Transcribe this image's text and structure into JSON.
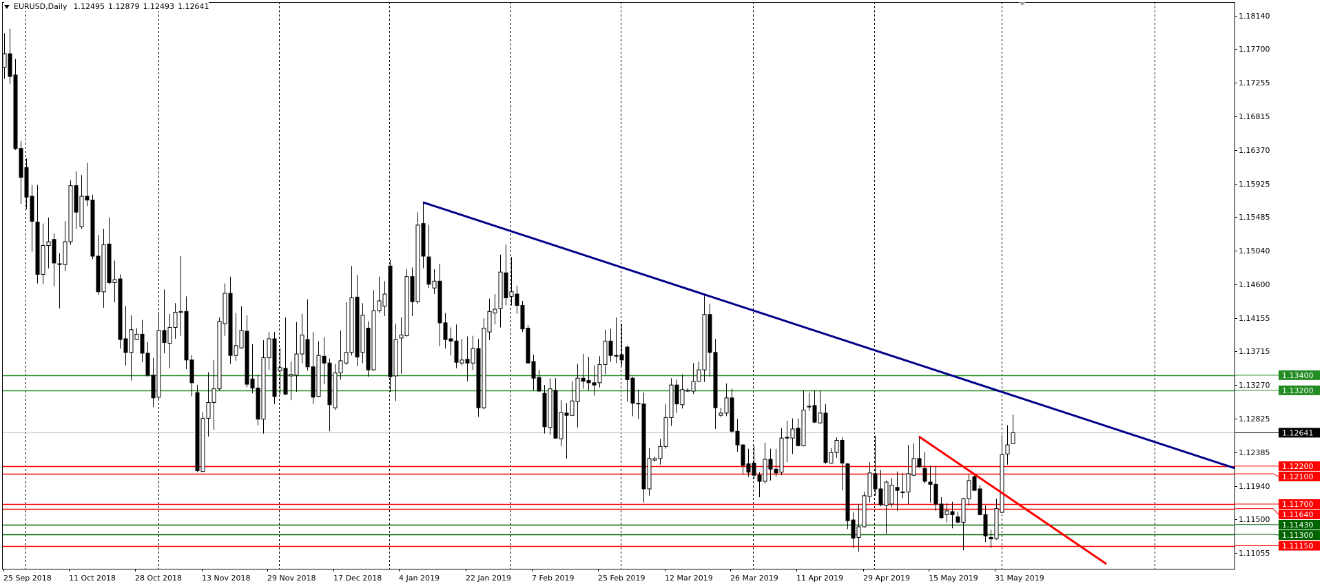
{
  "header": {
    "symbol": "EURUSD,Daily",
    "open": "1.12495",
    "high": "1.12879",
    "low": "1.12493",
    "close": "1.12641"
  },
  "colors": {
    "background": "#ffffff",
    "candle_bear": "#000000",
    "candle_bull_fill": "#ffffff",
    "grid": "#000000",
    "trendline_main": "#00008b",
    "trendline_short": "#ff0000",
    "support_green": "#228b22",
    "support_darkgreen": "#006400",
    "resistance_red": "#ff0000",
    "current_price_line": "#c0c0c0",
    "current_price_tag": "#000000"
  },
  "chart_data": {
    "type": "candlestick",
    "price_axis_labels": [
      "1.18140",
      "1.17700",
      "1.17255",
      "1.16815",
      "1.16370",
      "1.15925",
      "1.15485",
      "1.15040",
      "1.14600",
      "1.14155",
      "1.13715",
      "1.13270",
      "1.12825",
      "1.12385",
      "1.11940",
      "1.11500",
      "1.11055"
    ],
    "date_axis_labels": [
      "25 Sep 2018",
      "11 Oct 2018",
      "28 Oct 2018",
      "13 Nov 2018",
      "29 Nov 2018",
      "17 Dec 2018",
      "4 Jan 2019",
      "22 Jan 2019",
      "7 Feb 2019",
      "25 Feb 2019",
      "12 Mar 2019",
      "26 Mar 2019",
      "11 Apr 2019",
      "29 Apr 2019",
      "15 May 2019",
      "31 May 2019"
    ],
    "ylim": [
      1.1098,
      1.1817
    ],
    "grid": "vertical dashed",
    "candles_ohlc": [
      [
        1.1746,
        1.1791,
        1.1731,
        1.1764
      ],
      [
        1.1764,
        1.1797,
        1.1724,
        1.1734
      ],
      [
        1.1736,
        1.1757,
        1.1637,
        1.1639
      ],
      [
        1.1639,
        1.1649,
        1.1566,
        1.1601
      ],
      [
        1.1614,
        1.1626,
        1.1559,
        1.1575
      ],
      [
        1.1576,
        1.1591,
        1.1503,
        1.1543
      ],
      [
        1.1542,
        1.1591,
        1.1461,
        1.1473
      ],
      [
        1.1473,
        1.154,
        1.146,
        1.1511
      ],
      [
        1.1511,
        1.1548,
        1.1481,
        1.1516
      ],
      [
        1.1519,
        1.1527,
        1.1457,
        1.1488
      ],
      [
        1.1487,
        1.1501,
        1.1428,
        1.1486
      ],
      [
        1.1486,
        1.1543,
        1.1477,
        1.1516
      ],
      [
        1.1516,
        1.1597,
        1.1512,
        1.159
      ],
      [
        1.159,
        1.1609,
        1.1533,
        1.1555
      ],
      [
        1.1536,
        1.1604,
        1.1533,
        1.1576
      ],
      [
        1.1576,
        1.162,
        1.1563,
        1.1571
      ],
      [
        1.1571,
        1.1578,
        1.1493,
        1.1497
      ],
      [
        1.1497,
        1.1525,
        1.1446,
        1.145
      ],
      [
        1.145,
        1.1533,
        1.1429,
        1.1512
      ],
      [
        1.1513,
        1.1548,
        1.146,
        1.1462
      ],
      [
        1.1462,
        1.1491,
        1.1436,
        1.1466
      ],
      [
        1.1467,
        1.1473,
        1.1375,
        1.1387
      ],
      [
        1.1388,
        1.1431,
        1.1353,
        1.137
      ],
      [
        1.137,
        1.1419,
        1.1333,
        1.14
      ],
      [
        1.1387,
        1.1402,
        1.1386,
        1.1394
      ],
      [
        1.1394,
        1.1413,
        1.1357,
        1.1369
      ],
      [
        1.1369,
        1.1384,
        1.1338,
        1.134
      ],
      [
        1.134,
        1.1363,
        1.1298,
        1.131
      ],
      [
        1.1311,
        1.1421,
        1.1309,
        1.1399
      ],
      [
        1.1399,
        1.1453,
        1.1369,
        1.1383
      ],
      [
        1.1382,
        1.1421,
        1.1349,
        1.1403
      ],
      [
        1.1403,
        1.1435,
        1.1388,
        1.1423
      ],
      [
        1.1423,
        1.1497,
        1.1392,
        1.1424
      ],
      [
        1.1424,
        1.1444,
        1.1348,
        1.136
      ],
      [
        1.136,
        1.1366,
        1.1312,
        1.133
      ],
      [
        1.1317,
        1.1327,
        1.1212,
        1.1214
      ],
      [
        1.1213,
        1.1291,
        1.1212,
        1.1283
      ],
      [
        1.1283,
        1.1344,
        1.1259,
        1.1304
      ],
      [
        1.1304,
        1.136,
        1.1268,
        1.1322
      ],
      [
        1.1322,
        1.1416,
        1.132,
        1.1411
      ],
      [
        1.1408,
        1.1461,
        1.1392,
        1.1448
      ],
      [
        1.1448,
        1.147,
        1.1355,
        1.1366
      ],
      [
        1.1366,
        1.1422,
        1.1359,
        1.1379
      ],
      [
        1.1376,
        1.1431,
        1.1375,
        1.1399
      ],
      [
        1.1398,
        1.1419,
        1.1324,
        1.1328
      ],
      [
        1.1335,
        1.1381,
        1.1316,
        1.1323
      ],
      [
        1.1323,
        1.1341,
        1.1274,
        1.1282
      ],
      [
        1.1282,
        1.1386,
        1.1263,
        1.1363
      ],
      [
        1.1363,
        1.1397,
        1.1347,
        1.1388
      ],
      [
        1.1388,
        1.1397,
        1.1302,
        1.1312
      ],
      [
        1.1346,
        1.1376,
        1.1315,
        1.135
      ],
      [
        1.1349,
        1.1416,
        1.1314,
        1.1315
      ],
      [
        1.1339,
        1.1358,
        1.1307,
        1.1341
      ],
      [
        1.134,
        1.141,
        1.1318,
        1.1368
      ],
      [
        1.1368,
        1.1421,
        1.1356,
        1.1393
      ],
      [
        1.1387,
        1.144,
        1.1346,
        1.1351
      ],
      [
        1.1351,
        1.1397,
        1.1302,
        1.1311
      ],
      [
        1.1312,
        1.1385,
        1.1311,
        1.1366
      ],
      [
        1.1365,
        1.139,
        1.1328,
        1.1356
      ],
      [
        1.1356,
        1.1362,
        1.1266,
        1.1301
      ],
      [
        1.1297,
        1.1355,
        1.1294,
        1.1343
      ],
      [
        1.1343,
        1.1399,
        1.1334,
        1.1359
      ],
      [
        1.1356,
        1.1436,
        1.1354,
        1.137
      ],
      [
        1.137,
        1.1484,
        1.1366,
        1.1442
      ],
      [
        1.1443,
        1.1472,
        1.1352,
        1.1364
      ],
      [
        1.137,
        1.1435,
        1.1356,
        1.1419
      ],
      [
        1.1402,
        1.1411,
        1.1338,
        1.1347
      ],
      [
        1.1347,
        1.1452,
        1.1346,
        1.1425
      ],
      [
        1.1425,
        1.147,
        1.1422,
        1.1438
      ],
      [
        1.1431,
        1.1464,
        1.1418,
        1.1447
      ],
      [
        1.1484,
        1.1492,
        1.1318,
        1.1338
      ],
      [
        1.1339,
        1.1408,
        1.1306,
        1.1387
      ],
      [
        1.1389,
        1.1416,
        1.1342,
        1.1393
      ],
      [
        1.1392,
        1.148,
        1.1391,
        1.147
      ],
      [
        1.147,
        1.1482,
        1.1418,
        1.1437
      ],
      [
        1.1437,
        1.1555,
        1.1434,
        1.1538
      ],
      [
        1.154,
        1.1568,
        1.1481,
        1.1497
      ],
      [
        1.1496,
        1.1538,
        1.1455,
        1.146
      ],
      [
        1.1455,
        1.148,
        1.1447,
        1.1464
      ],
      [
        1.1464,
        1.1487,
        1.1378,
        1.1409
      ],
      [
        1.1409,
        1.1422,
        1.1375,
        1.1387
      ],
      [
        1.1388,
        1.1403,
        1.1366,
        1.1385
      ],
      [
        1.1385,
        1.1407,
        1.1349,
        1.1357
      ],
      [
        1.1356,
        1.1388,
        1.1353,
        1.136
      ],
      [
        1.1361,
        1.1391,
        1.1332,
        1.1356
      ],
      [
        1.1356,
        1.1392,
        1.1347,
        1.1375
      ],
      [
        1.1375,
        1.1388,
        1.1285,
        1.1297
      ],
      [
        1.1297,
        1.1415,
        1.1295,
        1.1402
      ],
      [
        1.1397,
        1.1441,
        1.1386,
        1.1424
      ],
      [
        1.1422,
        1.1447,
        1.1407,
        1.1427
      ],
      [
        1.1428,
        1.1499,
        1.1403,
        1.1476
      ],
      [
        1.1475,
        1.1512,
        1.1432,
        1.1442
      ],
      [
        1.1444,
        1.1496,
        1.1432,
        1.145
      ],
      [
        1.1447,
        1.1458,
        1.1421,
        1.1432
      ],
      [
        1.1432,
        1.1438,
        1.1397,
        1.1401
      ],
      [
        1.1402,
        1.1406,
        1.1357,
        1.1356
      ],
      [
        1.1358,
        1.1367,
        1.132,
        1.1336
      ],
      [
        1.1337,
        1.1347,
        1.1318,
        1.1319
      ],
      [
        1.1316,
        1.1327,
        1.1263,
        1.1272
      ],
      [
        1.1271,
        1.1336,
        1.1261,
        1.1322
      ],
      [
        1.132,
        1.1336,
        1.1256,
        1.1257
      ],
      [
        1.1256,
        1.1307,
        1.1246,
        1.1291
      ],
      [
        1.129,
        1.1303,
        1.123,
        1.1287
      ],
      [
        1.1287,
        1.1332,
        1.1286,
        1.1306
      ],
      [
        1.1305,
        1.1355,
        1.1271,
        1.1336
      ],
      [
        1.1336,
        1.1368,
        1.1322,
        1.1332
      ],
      [
        1.1333,
        1.1364,
        1.132,
        1.133
      ],
      [
        1.133,
        1.1353,
        1.1313,
        1.1327
      ],
      [
        1.133,
        1.1365,
        1.1324,
        1.1354
      ],
      [
        1.1354,
        1.14,
        1.1341,
        1.1385
      ],
      [
        1.1385,
        1.1401,
        1.1358,
        1.1366
      ],
      [
        1.1366,
        1.1416,
        1.1356,
        1.1365
      ],
      [
        1.1367,
        1.1408,
        1.1352,
        1.136
      ],
      [
        1.1377,
        1.1379,
        1.1305,
        1.1334
      ],
      [
        1.1336,
        1.1338,
        1.1286,
        1.1303
      ],
      [
        1.1303,
        1.1321,
        1.1282,
        1.1302
      ],
      [
        1.1302,
        1.1317,
        1.1172,
        1.119
      ],
      [
        1.119,
        1.1244,
        1.1181,
        1.123
      ],
      [
        1.1228,
        1.1232,
        1.1226,
        1.123
      ],
      [
        1.123,
        1.1256,
        1.1222,
        1.1246
      ],
      [
        1.1246,
        1.1302,
        1.1243,
        1.1284
      ],
      [
        1.1284,
        1.1336,
        1.1273,
        1.1327
      ],
      [
        1.1327,
        1.1334,
        1.129,
        1.1302
      ],
      [
        1.1301,
        1.1341,
        1.1296,
        1.1321
      ],
      [
        1.1319,
        1.1323,
        1.1318,
        1.132
      ],
      [
        1.1319,
        1.1356,
        1.1315,
        1.1332
      ],
      [
        1.1332,
        1.1358,
        1.1331,
        1.1347
      ],
      [
        1.1347,
        1.1446,
        1.1331,
        1.142
      ],
      [
        1.142,
        1.1434,
        1.1338,
        1.137
      ],
      [
        1.137,
        1.1388,
        1.1269,
        1.1297
      ],
      [
        1.1287,
        1.1297,
        1.1285,
        1.129
      ],
      [
        1.129,
        1.1329,
        1.1286,
        1.131
      ],
      [
        1.131,
        1.1322,
        1.1264,
        1.1266
      ],
      [
        1.1266,
        1.1282,
        1.1239,
        1.1248
      ],
      [
        1.1248,
        1.1249,
        1.1209,
        1.1221
      ],
      [
        1.1223,
        1.1243,
        1.1206,
        1.1212
      ],
      [
        1.1224,
        1.1247,
        1.1203,
        1.1208
      ],
      [
        1.1208,
        1.1212,
        1.1179,
        1.12
      ],
      [
        1.12,
        1.1251,
        1.1197,
        1.1229
      ],
      [
        1.1229,
        1.1243,
        1.1201,
        1.1216
      ],
      [
        1.1216,
        1.1243,
        1.1206,
        1.1211
      ],
      [
        1.1212,
        1.127,
        1.1208,
        1.1257
      ],
      [
        1.1258,
        1.128,
        1.1225,
        1.1257
      ],
      [
        1.1257,
        1.1283,
        1.1236,
        1.1269
      ],
      [
        1.127,
        1.1283,
        1.1246,
        1.1247
      ],
      [
        1.1247,
        1.132,
        1.1246,
        1.1294
      ],
      [
        1.1299,
        1.1317,
        1.1293,
        1.1298
      ],
      [
        1.13,
        1.132,
        1.1277,
        1.1278
      ],
      [
        1.1277,
        1.132,
        1.1276,
        1.129
      ],
      [
        1.129,
        1.1302,
        1.1223,
        1.1225
      ],
      [
        1.1224,
        1.1244,
        1.1223,
        1.1238
      ],
      [
        1.1238,
        1.1258,
        1.1231,
        1.1254
      ],
      [
        1.1254,
        1.1258,
        1.1188,
        1.1224
      ],
      [
        1.1223,
        1.1224,
        1.1137,
        1.1148
      ],
      [
        1.1149,
        1.1159,
        1.1112,
        1.1125
      ],
      [
        1.1126,
        1.117,
        1.1107,
        1.114
      ],
      [
        1.114,
        1.1186,
        1.1139,
        1.1181
      ],
      [
        1.118,
        1.1225,
        1.1172,
        1.1211
      ],
      [
        1.121,
        1.126,
        1.1181,
        1.119
      ],
      [
        1.119,
        1.1215,
        1.1167,
        1.1169
      ],
      [
        1.1168,
        1.1201,
        1.1131,
        1.1199
      ],
      [
        1.117,
        1.1204,
        1.1166,
        1.1195
      ],
      [
        1.1192,
        1.1213,
        1.1161,
        1.1188
      ],
      [
        1.1186,
        1.1211,
        1.1178,
        1.1185
      ],
      [
        1.1186,
        1.1248,
        1.117,
        1.121
      ],
      [
        1.1208,
        1.125,
        1.1207,
        1.123
      ],
      [
        1.123,
        1.126,
        1.1218,
        1.1219
      ],
      [
        1.1217,
        1.1239,
        1.1197,
        1.12
      ],
      [
        1.1199,
        1.1221,
        1.1172,
        1.1196
      ],
      [
        1.1196,
        1.122,
        1.1161,
        1.117
      ],
      [
        1.117,
        1.1179,
        1.1151,
        1.1152
      ],
      [
        1.1156,
        1.1171,
        1.1146,
        1.1161
      ],
      [
        1.116,
        1.1173,
        1.1138,
        1.1156
      ],
      [
        1.1153,
        1.116,
        1.1145,
        1.1146
      ],
      [
        1.1146,
        1.1178,
        1.1109,
        1.1177
      ],
      [
        1.1177,
        1.1209,
        1.1168,
        1.1201
      ],
      [
        1.1206,
        1.1211,
        1.119,
        1.1188
      ],
      [
        1.119,
        1.1195,
        1.1155,
        1.1156
      ],
      [
        1.1156,
        1.1168,
        1.112,
        1.1128
      ],
      [
        1.1126,
        1.1136,
        1.1112,
        1.1124
      ],
      [
        1.1124,
        1.1177,
        1.1123,
        1.1164
      ],
      [
        1.1159,
        1.1261,
        1.1158,
        1.1235
      ],
      [
        1.1236,
        1.1274,
        1.1222,
        1.1248
      ],
      [
        1.12495,
        1.12879,
        1.12493,
        1.12641
      ]
    ],
    "horizontal_levels": [
      {
        "price": 1.134,
        "label": "1.13400",
        "color": "#228b22"
      },
      {
        "price": 1.132,
        "label": "1.13200",
        "color": "#228b22"
      },
      {
        "price": 1.122,
        "label": "1.12200",
        "color": "#ff0000"
      },
      {
        "price": 1.121,
        "label": "1.12100",
        "color": "#ff0000"
      },
      {
        "price": 1.117,
        "label": "1.11700",
        "color": "#ff0000"
      },
      {
        "price": 1.1164,
        "label": "1.11640",
        "color": "#ff0000"
      },
      {
        "price": 1.1143,
        "label": "1.11430",
        "color": "#006400"
      },
      {
        "price": 1.113,
        "label": "1.11300",
        "color": "#006400"
      },
      {
        "price": 1.1115,
        "label": "1.11150",
        "color": "#ff0000"
      }
    ],
    "current_price": {
      "price": 1.12641,
      "label": "1.12641"
    },
    "trendlines": [
      {
        "name": "descending-resistance",
        "color": "#00008b",
        "from": {
          "candle": 76,
          "price": 1.1568
        },
        "to": {
          "candle": 181,
          "price": 1.1318
        },
        "extend_right": true
      },
      {
        "name": "short-term-downtrend",
        "color": "#ff0000",
        "from": {
          "candle": 166,
          "price": 1.1259
        },
        "to": {
          "candle": 200,
          "price": 1.1091
        },
        "extend_right": false
      }
    ]
  }
}
